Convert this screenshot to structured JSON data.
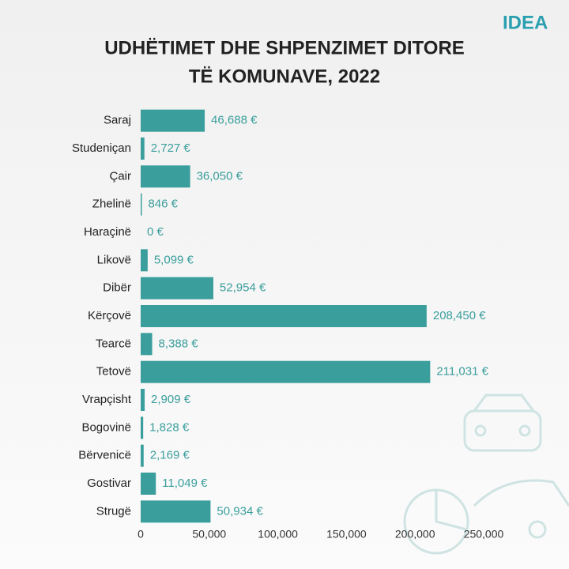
{
  "logo": "IDEA",
  "chart_data": {
    "type": "bar",
    "orientation": "horizontal",
    "title": [
      "UDHËTIMET DHE SHPENZIMET DITORE",
      "TË KOMUNAVE, 2022"
    ],
    "categories": [
      "Saraj",
      "Studeniçan",
      "Çair",
      "Zhelinë",
      "Haraçinë",
      "Likovë",
      "Dibër",
      "Kërçovë",
      "Tearcë",
      "Tetovë",
      "Vrapçisht",
      "Bogovinë",
      "Bërvenicë",
      "Gostivar",
      "Strugë"
    ],
    "values": [
      46688,
      2727,
      36050,
      846,
      0,
      5099,
      52954,
      208450,
      8388,
      211031,
      2909,
      1828,
      2169,
      11049,
      50934
    ],
    "value_labels": [
      "46,688 €",
      "2,727 €",
      "36,050 €",
      "846 €",
      "0 €",
      "5,099 €",
      "52,954 €",
      "208,450 €",
      "8,388 €",
      "211,031 €",
      "2,909 €",
      "1,828 €",
      "2,169 €",
      "11,049 €",
      "50,934 €"
    ],
    "color": "#3a9e9c",
    "xlim": [
      0,
      250000
    ],
    "xticks": [
      0,
      {
        "value": 50000,
        "label": "50,000"
      },
      {
        "value": 100000,
        "label": "100,000"
      },
      {
        "value": 150000,
        "label": "150,000"
      },
      {
        "value": 200000,
        "label": "200,000"
      },
      {
        "value": 250000,
        "label": "250,000"
      }
    ],
    "grid": false
  }
}
